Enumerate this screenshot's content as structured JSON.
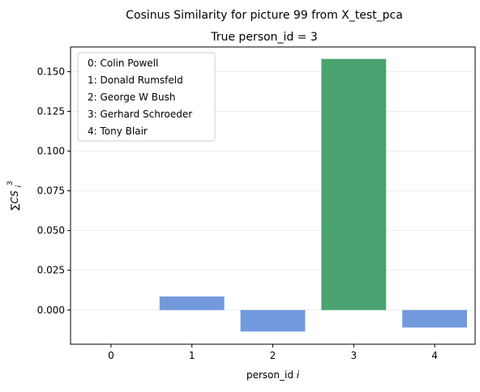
{
  "chart_data": {
    "type": "bar",
    "title": "Cosinus Similarity for picture 99 from X_test_pca",
    "subtitle": "True person_id = 3",
    "xlabel_text": "person_id",
    "xlabel_var": "i",
    "ylabel_main": "∑CS",
    "ylabel_sub": "i",
    "ylabel_sup": "3",
    "categories": [
      "0",
      "1",
      "2",
      "3",
      "4"
    ],
    "values": [
      0.0,
      0.0085,
      -0.0135,
      0.158,
      -0.011
    ],
    "highlight_index": 3,
    "ylim": [
      -0.0215,
      0.1655
    ],
    "yticks": [
      0.0,
      0.025,
      0.05,
      0.075,
      0.1,
      0.125,
      0.15
    ],
    "ytick_labels": [
      "0.000",
      "0.025",
      "0.050",
      "0.075",
      "0.100",
      "0.125",
      "0.150"
    ],
    "grid": "y",
    "legend_placement": "top-left",
    "legend_entries": [
      "0: Colin Powell",
      "1: Donald Rumsfeld",
      "2: George W Bush",
      "3: Gerhard Schroeder",
      "4: Tony Blair"
    ],
    "colors": {
      "default_bar": "#7399dd",
      "highlight_bar": "#4ba371"
    }
  }
}
